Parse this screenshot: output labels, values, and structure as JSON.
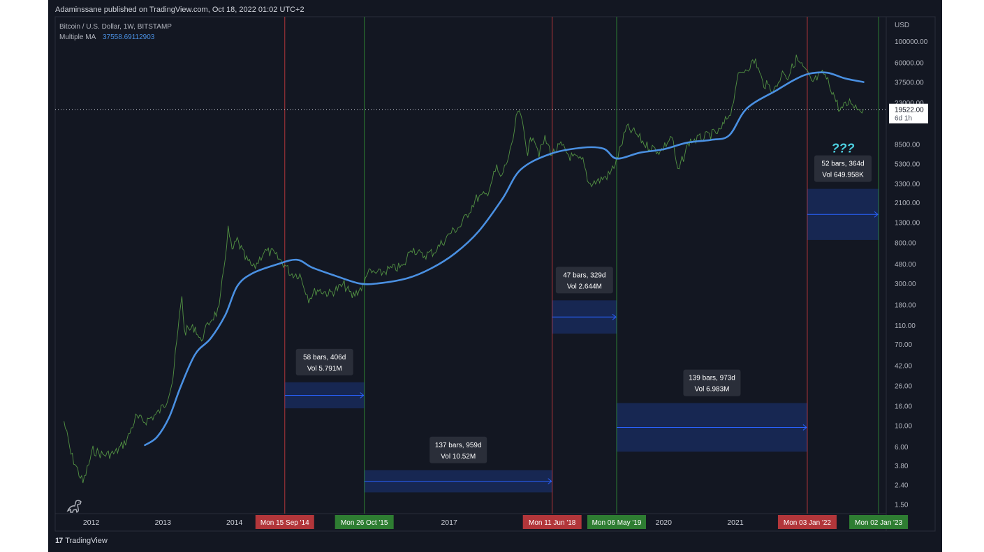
{
  "header": {
    "published": "Adaminssane published on TradingView.com, Oct 18, 2022 01:02 UTC+2"
  },
  "footer": {
    "brand": "TradingView"
  },
  "chart_data": {
    "type": "line",
    "symbol_line": "Bitcoin / U.S. Dollar, 1W, BITSTAMP",
    "indicator_label": "Multiple MA",
    "indicator_value": "37558.69112903",
    "currency_label": "USD",
    "last_price_label": "19522.00",
    "countdown_label": "6d 1h",
    "last_price": 19522,
    "annotation_question": "???",
    "y_scale": "log",
    "ylim": [
      1.2,
      180000
    ],
    "xlim": [
      "2011-07-01",
      "2023-02-10"
    ],
    "y_ticks": [
      {
        "v": 100000,
        "label": "100000.00"
      },
      {
        "v": 60000,
        "label": "60000.00"
      },
      {
        "v": 37500,
        "label": "37500.00"
      },
      {
        "v": 23000,
        "label": "23000.00"
      },
      {
        "v": 8500,
        "label": "8500.00"
      },
      {
        "v": 5300,
        "label": "5300.00"
      },
      {
        "v": 3300,
        "label": "3300.00"
      },
      {
        "v": 2100,
        "label": "2100.00"
      },
      {
        "v": 1300,
        "label": "1300.00"
      },
      {
        "v": 800,
        "label": "800.00"
      },
      {
        "v": 480,
        "label": "480.00"
      },
      {
        "v": 300,
        "label": "300.00"
      },
      {
        "v": 180,
        "label": "180.00"
      },
      {
        "v": 110,
        "label": "110.00"
      },
      {
        "v": 70,
        "label": "70.00"
      },
      {
        "v": 42,
        "label": "42.00"
      },
      {
        "v": 26,
        "label": "26.00"
      },
      {
        "v": 16,
        "label": "16.00"
      },
      {
        "v": 10,
        "label": "10.00"
      },
      {
        "v": 6,
        "label": "6.00"
      },
      {
        "v": 3.8,
        "label": "3.80"
      },
      {
        "v": 2.4,
        "label": "2.40"
      },
      {
        "v": 1.5,
        "label": "1.50"
      }
    ],
    "x_ticks": [
      {
        "date": "2012-01-01",
        "label": "2012"
      },
      {
        "date": "2013-01-01",
        "label": "2013"
      },
      {
        "date": "2014-01-01",
        "label": "2014"
      },
      {
        "date": "2017-01-01",
        "label": "2017"
      },
      {
        "date": "2020-01-01",
        "label": "2020"
      },
      {
        "date": "2021-01-01",
        "label": "2021"
      }
    ],
    "vertical_markers": [
      {
        "date": "2014-09-15",
        "label": "Mon 15 Sep '14",
        "color": "#b2363a"
      },
      {
        "date": "2015-10-26",
        "label": "Mon 26 Oct '15",
        "color": "#2e7d32"
      },
      {
        "date": "2018-06-11",
        "label": "Mon 11 Jun '18",
        "color": "#b2363a"
      },
      {
        "date": "2019-05-06",
        "label": "Mon 06 May '19",
        "color": "#2e7d32"
      },
      {
        "date": "2022-01-03",
        "label": "Mon 03 Jan '22",
        "color": "#b2363a"
      },
      {
        "date": "2023-01-02",
        "label": "Mon 02 Jan '23",
        "color": "#2e7d32"
      }
    ],
    "date_ranges": [
      {
        "from": "2014-09-15",
        "to": "2015-10-26",
        "y_top": 28,
        "y_bottom": 15,
        "line1": "58 bars, 406d",
        "line2": "Vol 5.791M"
      },
      {
        "from": "2015-10-26",
        "to": "2018-06-11",
        "y_top": 3.4,
        "y_bottom": 2.0,
        "line1": "137 bars, 959d",
        "line2": "Vol 10.52M"
      },
      {
        "from": "2018-06-11",
        "to": "2019-05-06",
        "y_top": 200,
        "y_bottom": 90,
        "line1": "47 bars, 329d",
        "line2": "Vol 2.644M"
      },
      {
        "from": "2019-05-06",
        "to": "2022-01-03",
        "y_top": 17,
        "y_bottom": 5.3,
        "line1": "139 bars, 973d",
        "line2": "Vol 6.983M"
      },
      {
        "from": "2022-01-03",
        "to": "2023-01-02",
        "y_top": 2900,
        "y_bottom": 850,
        "line1": "52 bars, 364d",
        "line2": "Vol 649.958K"
      }
    ],
    "series": [
      {
        "name": "Bitcoin / U.S. Dollar",
        "color": "#5aa047",
        "points": [
          [
            "2011-08-15",
            11
          ],
          [
            "2011-09-20",
            5
          ],
          [
            "2011-11-20",
            2.5
          ],
          [
            "2012-01-10",
            5.5
          ],
          [
            "2012-03-01",
            4.9
          ],
          [
            "2012-05-01",
            5.1
          ],
          [
            "2012-07-01",
            7
          ],
          [
            "2012-08-15",
            12
          ],
          [
            "2012-10-01",
            11
          ],
          [
            "2012-12-01",
            13
          ],
          [
            "2013-01-15",
            17
          ],
          [
            "2013-02-20",
            30
          ],
          [
            "2013-04-08",
            230
          ],
          [
            "2013-04-20",
            95
          ],
          [
            "2013-06-15",
            105
          ],
          [
            "2013-07-10",
            75
          ],
          [
            "2013-09-01",
            125
          ],
          [
            "2013-10-15",
            160
          ],
          [
            "2013-11-30",
            1100
          ],
          [
            "2013-12-20",
            650
          ],
          [
            "2014-01-15",
            850
          ],
          [
            "2014-02-25",
            550
          ],
          [
            "2014-04-10",
            430
          ],
          [
            "2014-06-01",
            650
          ],
          [
            "2014-07-15",
            620
          ],
          [
            "2014-09-15",
            470
          ],
          [
            "2014-10-15",
            380
          ],
          [
            "2014-12-01",
            370
          ],
          [
            "2015-01-15",
            210
          ],
          [
            "2015-03-01",
            260
          ],
          [
            "2015-05-01",
            235
          ],
          [
            "2015-07-15",
            290
          ],
          [
            "2015-08-25",
            220
          ],
          [
            "2015-10-26",
            290
          ],
          [
            "2015-11-05",
            390
          ],
          [
            "2016-01-15",
            380
          ],
          [
            "2016-03-01",
            420
          ],
          [
            "2016-05-15",
            450
          ],
          [
            "2016-06-20",
            720
          ],
          [
            "2016-08-15",
            580
          ],
          [
            "2016-10-15",
            640
          ],
          [
            "2016-12-20",
            900
          ],
          [
            "2017-01-05",
            1000
          ],
          [
            "2017-03-01",
            1200
          ],
          [
            "2017-05-20",
            2300
          ],
          [
            "2017-07-10",
            2500
          ],
          [
            "2017-09-01",
            4800
          ],
          [
            "2017-09-20",
            3700
          ],
          [
            "2017-11-15",
            7500
          ],
          [
            "2017-12-17",
            19000
          ],
          [
            "2018-01-10",
            14000
          ],
          [
            "2018-02-06",
            7000
          ],
          [
            "2018-03-05",
            11000
          ],
          [
            "2018-04-05",
            6800
          ],
          [
            "2018-05-05",
            9500
          ],
          [
            "2018-06-11",
            6700
          ],
          [
            "2018-07-25",
            8200
          ],
          [
            "2018-09-10",
            6300
          ],
          [
            "2018-11-15",
            5600
          ],
          [
            "2018-12-15",
            3300
          ],
          [
            "2019-02-01",
            3500
          ],
          [
            "2019-04-01",
            4100
          ],
          [
            "2019-05-06",
            5800
          ],
          [
            "2019-06-26",
            12500
          ],
          [
            "2019-08-10",
            11000
          ],
          [
            "2019-10-01",
            8300
          ],
          [
            "2019-12-15",
            7100
          ],
          [
            "2020-02-12",
            10300
          ],
          [
            "2020-03-13",
            4300
          ],
          [
            "2020-05-10",
            9000
          ],
          [
            "2020-07-25",
            10000
          ],
          [
            "2020-10-15",
            11500
          ],
          [
            "2020-12-15",
            20000
          ],
          [
            "2021-01-08",
            40000
          ],
          [
            "2021-02-15",
            50000
          ],
          [
            "2021-04-14",
            63000
          ],
          [
            "2021-05-20",
            37000
          ],
          [
            "2021-07-20",
            31000
          ],
          [
            "2021-09-05",
            50000
          ],
          [
            "2021-09-25",
            42000
          ],
          [
            "2021-11-08",
            66000
          ],
          [
            "2022-01-03",
            46000
          ],
          [
            "2022-01-25",
            37000
          ],
          [
            "2022-03-28",
            46500
          ],
          [
            "2022-05-09",
            31000
          ],
          [
            "2022-06-18",
            19000
          ],
          [
            "2022-08-14",
            24000
          ],
          [
            "2022-09-15",
            20000
          ],
          [
            "2022-10-17",
            19522
          ]
        ]
      },
      {
        "name": "Multiple MA",
        "color": "#4a90e2",
        "points": [
          [
            "2012-10-01",
            6.2
          ],
          [
            "2012-12-01",
            7.5
          ],
          [
            "2013-02-01",
            12
          ],
          [
            "2013-04-01",
            25
          ],
          [
            "2013-06-15",
            55
          ],
          [
            "2013-09-01",
            80
          ],
          [
            "2013-11-15",
            140
          ],
          [
            "2014-01-15",
            280
          ],
          [
            "2014-04-01",
            380
          ],
          [
            "2014-08-01",
            470
          ],
          [
            "2014-11-15",
            530
          ],
          [
            "2015-02-01",
            440
          ],
          [
            "2015-06-01",
            360
          ],
          [
            "2015-10-01",
            300
          ],
          [
            "2016-01-01",
            300
          ],
          [
            "2016-06-01",
            340
          ],
          [
            "2016-10-01",
            430
          ],
          [
            "2017-02-01",
            620
          ],
          [
            "2017-06-01",
            1050
          ],
          [
            "2017-10-01",
            2300
          ],
          [
            "2018-01-01",
            4600
          ],
          [
            "2018-06-01",
            6700
          ],
          [
            "2018-11-15",
            7800
          ],
          [
            "2019-03-01",
            7600
          ],
          [
            "2019-05-06",
            6000
          ],
          [
            "2019-09-01",
            6900
          ],
          [
            "2020-01-01",
            7500
          ],
          [
            "2020-05-01",
            8800
          ],
          [
            "2020-09-01",
            9400
          ],
          [
            "2020-12-01",
            10500
          ],
          [
            "2021-03-01",
            20000
          ],
          [
            "2021-08-01",
            31000
          ],
          [
            "2021-11-01",
            40000
          ],
          [
            "2022-01-15",
            46000
          ],
          [
            "2022-04-15",
            47000
          ],
          [
            "2022-07-15",
            41000
          ],
          [
            "2022-10-17",
            37559
          ]
        ]
      }
    ]
  }
}
